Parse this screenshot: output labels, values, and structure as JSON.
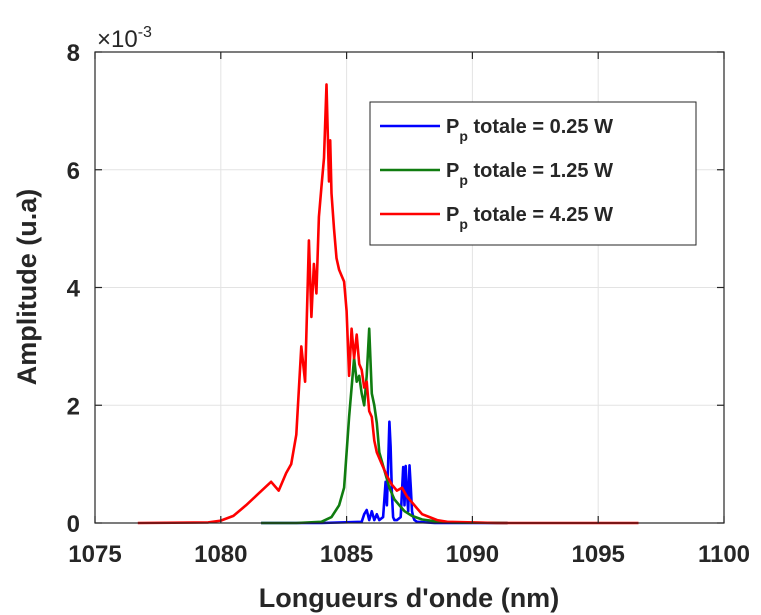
{
  "chart_data": {
    "type": "line",
    "xlabel": "Longueurs d'onde (nm)",
    "ylabel": "Amplitude (u.a)",
    "y_exponent_label": "×10",
    "y_exponent_power": "-3",
    "xlim": [
      1075,
      1100
    ],
    "ylim": [
      0,
      8
    ],
    "xticks": [
      "1075",
      "1080",
      "1085",
      "1090",
      "1095",
      "1100"
    ],
    "yticks": [
      "0",
      "2",
      "4",
      "6",
      "8"
    ],
    "grid": true,
    "legend_position": "top-right",
    "legend_prefix": "P",
    "legend_sub": "p",
    "series": [
      {
        "name": " totale = 0.25 W",
        "color": "#0000ff",
        "x": [
          1081.6,
          1084.0,
          1085.6,
          1085.7,
          1085.8,
          1085.9,
          1086.0,
          1086.1,
          1086.2,
          1086.3,
          1086.45,
          1086.55,
          1086.6,
          1086.7,
          1086.75,
          1086.8,
          1086.85,
          1086.9,
          1087.0,
          1087.15,
          1087.25,
          1087.3,
          1087.35,
          1087.4,
          1087.45,
          1087.5,
          1087.55,
          1087.6,
          1087.65,
          1087.7,
          1087.8,
          1088.5,
          1091.4
        ],
        "y": [
          0,
          0,
          0.02,
          0.15,
          0.22,
          0.05,
          0.2,
          0.05,
          0.15,
          0.05,
          0.1,
          0.7,
          0.3,
          1.72,
          1.3,
          0.5,
          0.1,
          0.05,
          0.05,
          0.1,
          0.95,
          0.3,
          0.97,
          0.5,
          0.2,
          0.98,
          0.6,
          0.2,
          0.1,
          0.05,
          0.02,
          0,
          0
        ]
      },
      {
        "name": " totale = 1.25 W",
        "color": "#107c10",
        "x": [
          1081.6,
          1083.0,
          1084.0,
          1084.4,
          1084.7,
          1084.9,
          1085.0,
          1085.1,
          1085.2,
          1085.3,
          1085.4,
          1085.5,
          1085.6,
          1085.7,
          1085.8,
          1085.9,
          1086.0,
          1086.1,
          1086.2,
          1086.3,
          1086.5,
          1086.7,
          1086.9,
          1087.1,
          1087.3,
          1087.6,
          1088.0,
          1088.5,
          1089.2,
          1091.4
        ],
        "y": [
          0,
          0,
          0.02,
          0.1,
          0.3,
          0.6,
          1.2,
          1.8,
          2.3,
          2.8,
          2.4,
          2.5,
          2.2,
          2.0,
          2.5,
          3.3,
          2.2,
          2.0,
          1.7,
          1.2,
          0.9,
          0.6,
          0.4,
          0.3,
          0.2,
          0.12,
          0.06,
          0.03,
          0.01,
          0
        ]
      },
      {
        "name": " totale = 4.25 W",
        "color": "#ff0000",
        "x": [
          1076.7,
          1079.5,
          1080.0,
          1080.5,
          1081.0,
          1081.5,
          1082.0,
          1082.3,
          1082.6,
          1082.8,
          1083.0,
          1083.2,
          1083.35,
          1083.5,
          1083.6,
          1083.7,
          1083.8,
          1083.9,
          1084.0,
          1084.1,
          1084.2,
          1084.3,
          1084.35,
          1084.4,
          1084.5,
          1084.6,
          1084.7,
          1084.8,
          1084.9,
          1085.0,
          1085.1,
          1085.2,
          1085.3,
          1085.4,
          1085.5,
          1085.6,
          1085.7,
          1085.8,
          1085.9,
          1086.0,
          1086.1,
          1086.2,
          1086.4,
          1086.6,
          1086.8,
          1087.0,
          1087.2,
          1087.4,
          1087.6,
          1087.8,
          1088.0,
          1088.3,
          1088.6,
          1089.0,
          1090.0,
          1091.0,
          1096.6
        ],
        "y": [
          0,
          0.01,
          0.04,
          0.12,
          0.3,
          0.5,
          0.7,
          0.55,
          0.85,
          1.0,
          1.5,
          3.0,
          2.4,
          4.8,
          3.5,
          4.4,
          3.9,
          5.2,
          5.7,
          6.2,
          7.45,
          5.8,
          6.5,
          5.6,
          5.0,
          4.5,
          4.3,
          4.2,
          4.1,
          3.6,
          2.5,
          3.3,
          2.8,
          3.2,
          2.7,
          2.6,
          2.3,
          2.4,
          1.9,
          1.8,
          1.4,
          1.2,
          1.0,
          0.8,
          0.65,
          0.55,
          0.6,
          0.45,
          0.35,
          0.25,
          0.15,
          0.1,
          0.05,
          0.02,
          0.01,
          0,
          0
        ]
      }
    ]
  }
}
